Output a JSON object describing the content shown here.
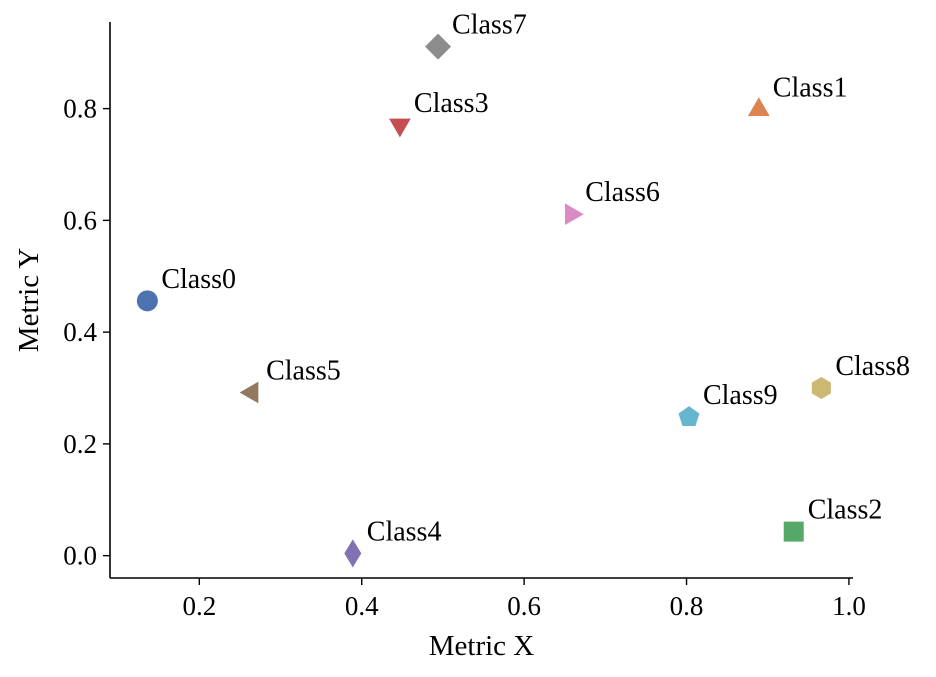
{
  "chart_data": {
    "type": "scatter",
    "title": "",
    "xlabel": "Metric X",
    "ylabel": "Metric Y",
    "xlim": [
      0.09,
      1.005
    ],
    "ylim": [
      -0.04,
      0.955
    ],
    "xticks": [
      0.2,
      0.4,
      0.6,
      0.8,
      1.0
    ],
    "xtick_labels": [
      "0.2",
      "0.4",
      "0.6",
      "0.8",
      "1.0"
    ],
    "yticks": [
      0.0,
      0.2,
      0.4,
      0.6,
      0.8
    ],
    "ytick_labels": [
      "0.0",
      "0.2",
      "0.4",
      "0.6",
      "0.8"
    ],
    "grid": false,
    "legend": "none",
    "points": [
      {
        "label": "Class0",
        "x": 0.136,
        "y": 0.456,
        "marker": "circle",
        "color": "#4c72b0"
      },
      {
        "label": "Class1",
        "x": 0.889,
        "y": 0.798,
        "marker": "triangle-up",
        "color": "#dd8452"
      },
      {
        "label": "Class2",
        "x": 0.932,
        "y": 0.043,
        "marker": "square",
        "color": "#55a868"
      },
      {
        "label": "Class3",
        "x": 0.447,
        "y": 0.771,
        "marker": "triangle-down",
        "color": "#c44e52"
      },
      {
        "label": "Class4",
        "x": 0.389,
        "y": 0.004,
        "marker": "thin-diamond",
        "color": "#8172b3"
      },
      {
        "label": "Class5",
        "x": 0.265,
        "y": 0.292,
        "marker": "triangle-left",
        "color": "#937860"
      },
      {
        "label": "Class6",
        "x": 0.658,
        "y": 0.611,
        "marker": "triangle-right",
        "color": "#da8bc3"
      },
      {
        "label": "Class7",
        "x": 0.494,
        "y": 0.911,
        "marker": "diamond",
        "color": "#8c8c8c"
      },
      {
        "label": "Class8",
        "x": 0.966,
        "y": 0.3,
        "marker": "hexagon",
        "color": "#ccb974"
      },
      {
        "label": "Class9",
        "x": 0.803,
        "y": 0.248,
        "marker": "pentagon",
        "color": "#64b5cd"
      }
    ]
  }
}
